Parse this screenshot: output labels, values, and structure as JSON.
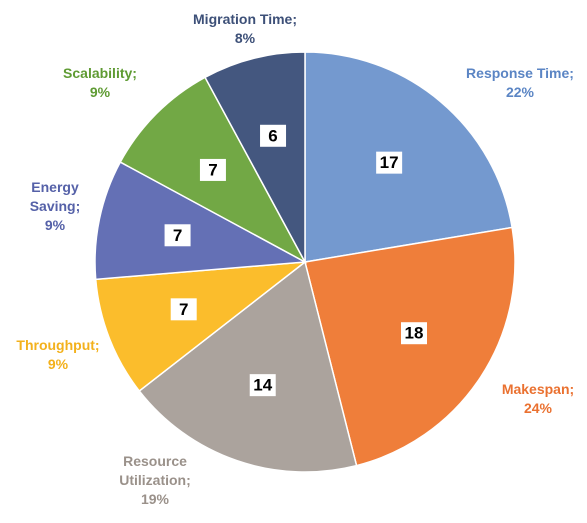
{
  "chart_data": {
    "type": "pie",
    "categories": [
      "Response Time;",
      "Makespan;",
      "Resource Utilization;",
      "Throughput;",
      "Energy Saving;",
      "Scalability;",
      "Migration Time;"
    ],
    "values": [
      17,
      18,
      14,
      7,
      7,
      7,
      6
    ],
    "percent_labels": [
      "22%",
      "24%",
      "19%",
      "9%",
      "9%",
      "9%",
      "8%"
    ],
    "colors": [
      "#7499cf",
      "#ef7e3a",
      "#aba39d",
      "#fbbd2c",
      "#6470b5",
      "#72a845",
      "#44577f"
    ],
    "label_colors": [
      "#5b85c4",
      "#ea7130",
      "#9a918a",
      "#f3b11c",
      "#5561a8",
      "#5f9b33",
      "#3d5078"
    ]
  }
}
